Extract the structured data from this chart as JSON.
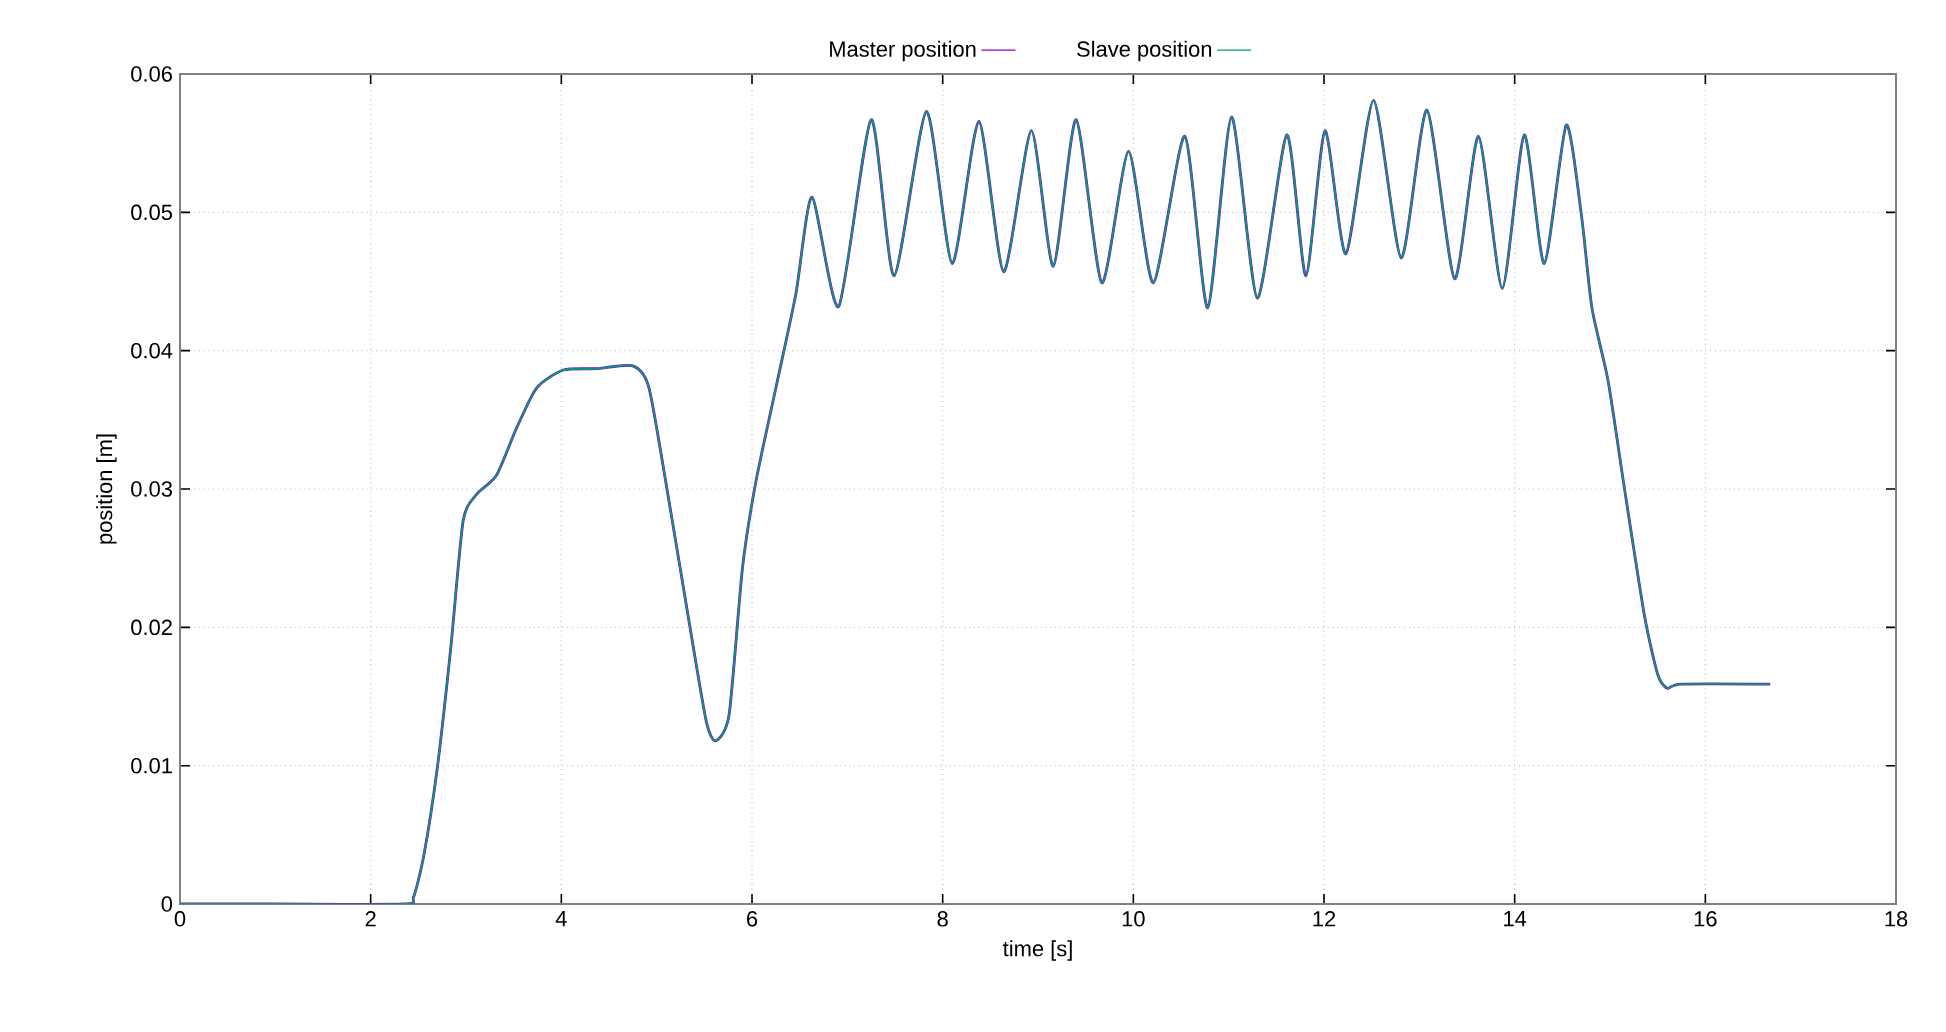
{
  "chart_data": {
    "type": "line",
    "xlabel": "time [s]",
    "ylabel": "position [m]",
    "xlim": [
      0,
      18
    ],
    "xticks": [
      0,
      2,
      4,
      6,
      8,
      10,
      12,
      14,
      16,
      18
    ],
    "ylim": [
      0,
      0.06
    ],
    "yticks": [
      0,
      0.01,
      0.02,
      0.03,
      0.04,
      0.05,
      0.06
    ],
    "grid": true,
    "legend": "top",
    "line_style": "solid",
    "marker": "none",
    "x": [
      0,
      1,
      2.35,
      2.45,
      2.56,
      2.7,
      2.84,
      2.97,
      3.11,
      3.32,
      3.53,
      3.74,
      4.02,
      4.37,
      4.75,
      4.92,
      5.13,
      5.34,
      5.52,
      5.62,
      5.76,
      5.9,
      6.04,
      6.25,
      6.46,
      6.63,
      6.91,
      7.25,
      7.49,
      7.83,
      8.1,
      8.38,
      8.64,
      8.93,
      9.16,
      9.4,
      9.67,
      9.95,
      10.21,
      10.54,
      10.78,
      11.03,
      11.3,
      11.61,
      11.81,
      12.01,
      12.23,
      12.52,
      12.81,
      13.08,
      13.37,
      13.62,
      13.87,
      14.1,
      14.31,
      14.54,
      14.7,
      14.81,
      14.98,
      15.15,
      15.36,
      15.5,
      15.6,
      15.75,
      16.68
    ],
    "series": [
      {
        "name": "Master position",
        "color": "#9400d3",
        "values": [
          0,
          0,
          0,
          0.0005,
          0.0036,
          0.0099,
          0.0185,
          0.0277,
          0.0296,
          0.031,
          0.0344,
          0.0373,
          0.0386,
          0.0387,
          0.0389,
          0.0373,
          0.0291,
          0.0204,
          0.0132,
          0.0118,
          0.0137,
          0.0243,
          0.0305,
          0.0373,
          0.0441,
          0.0511,
          0.0432,
          0.0567,
          0.0454,
          0.0573,
          0.0463,
          0.0566,
          0.0457,
          0.0559,
          0.0461,
          0.0567,
          0.0449,
          0.0544,
          0.0449,
          0.0555,
          0.0431,
          0.0569,
          0.0438,
          0.0556,
          0.0454,
          0.0559,
          0.047,
          0.0581,
          0.0467,
          0.0574,
          0.0452,
          0.0555,
          0.0445,
          0.0556,
          0.0463,
          0.0563,
          0.0498,
          0.0431,
          0.0378,
          0.0301,
          0.0209,
          0.0166,
          0.0156,
          0.0159,
          0.0159
        ]
      },
      {
        "name": "Slave position",
        "color": "#009e73",
        "values": [
          0,
          0,
          0,
          0.0005,
          0.0036,
          0.0099,
          0.0185,
          0.0277,
          0.0296,
          0.031,
          0.0344,
          0.0373,
          0.0386,
          0.0387,
          0.0389,
          0.0373,
          0.0291,
          0.0204,
          0.0132,
          0.0118,
          0.0137,
          0.0243,
          0.0305,
          0.0373,
          0.0441,
          0.0511,
          0.0432,
          0.0567,
          0.0454,
          0.0573,
          0.0463,
          0.0566,
          0.0457,
          0.0559,
          0.0461,
          0.0567,
          0.0449,
          0.0544,
          0.0449,
          0.0555,
          0.0431,
          0.0569,
          0.0438,
          0.0556,
          0.0454,
          0.0559,
          0.047,
          0.0581,
          0.0467,
          0.0574,
          0.0452,
          0.0555,
          0.0445,
          0.0556,
          0.0463,
          0.0563,
          0.0498,
          0.0431,
          0.0378,
          0.0301,
          0.0209,
          0.0166,
          0.0156,
          0.0159,
          0.0159
        ]
      }
    ]
  }
}
